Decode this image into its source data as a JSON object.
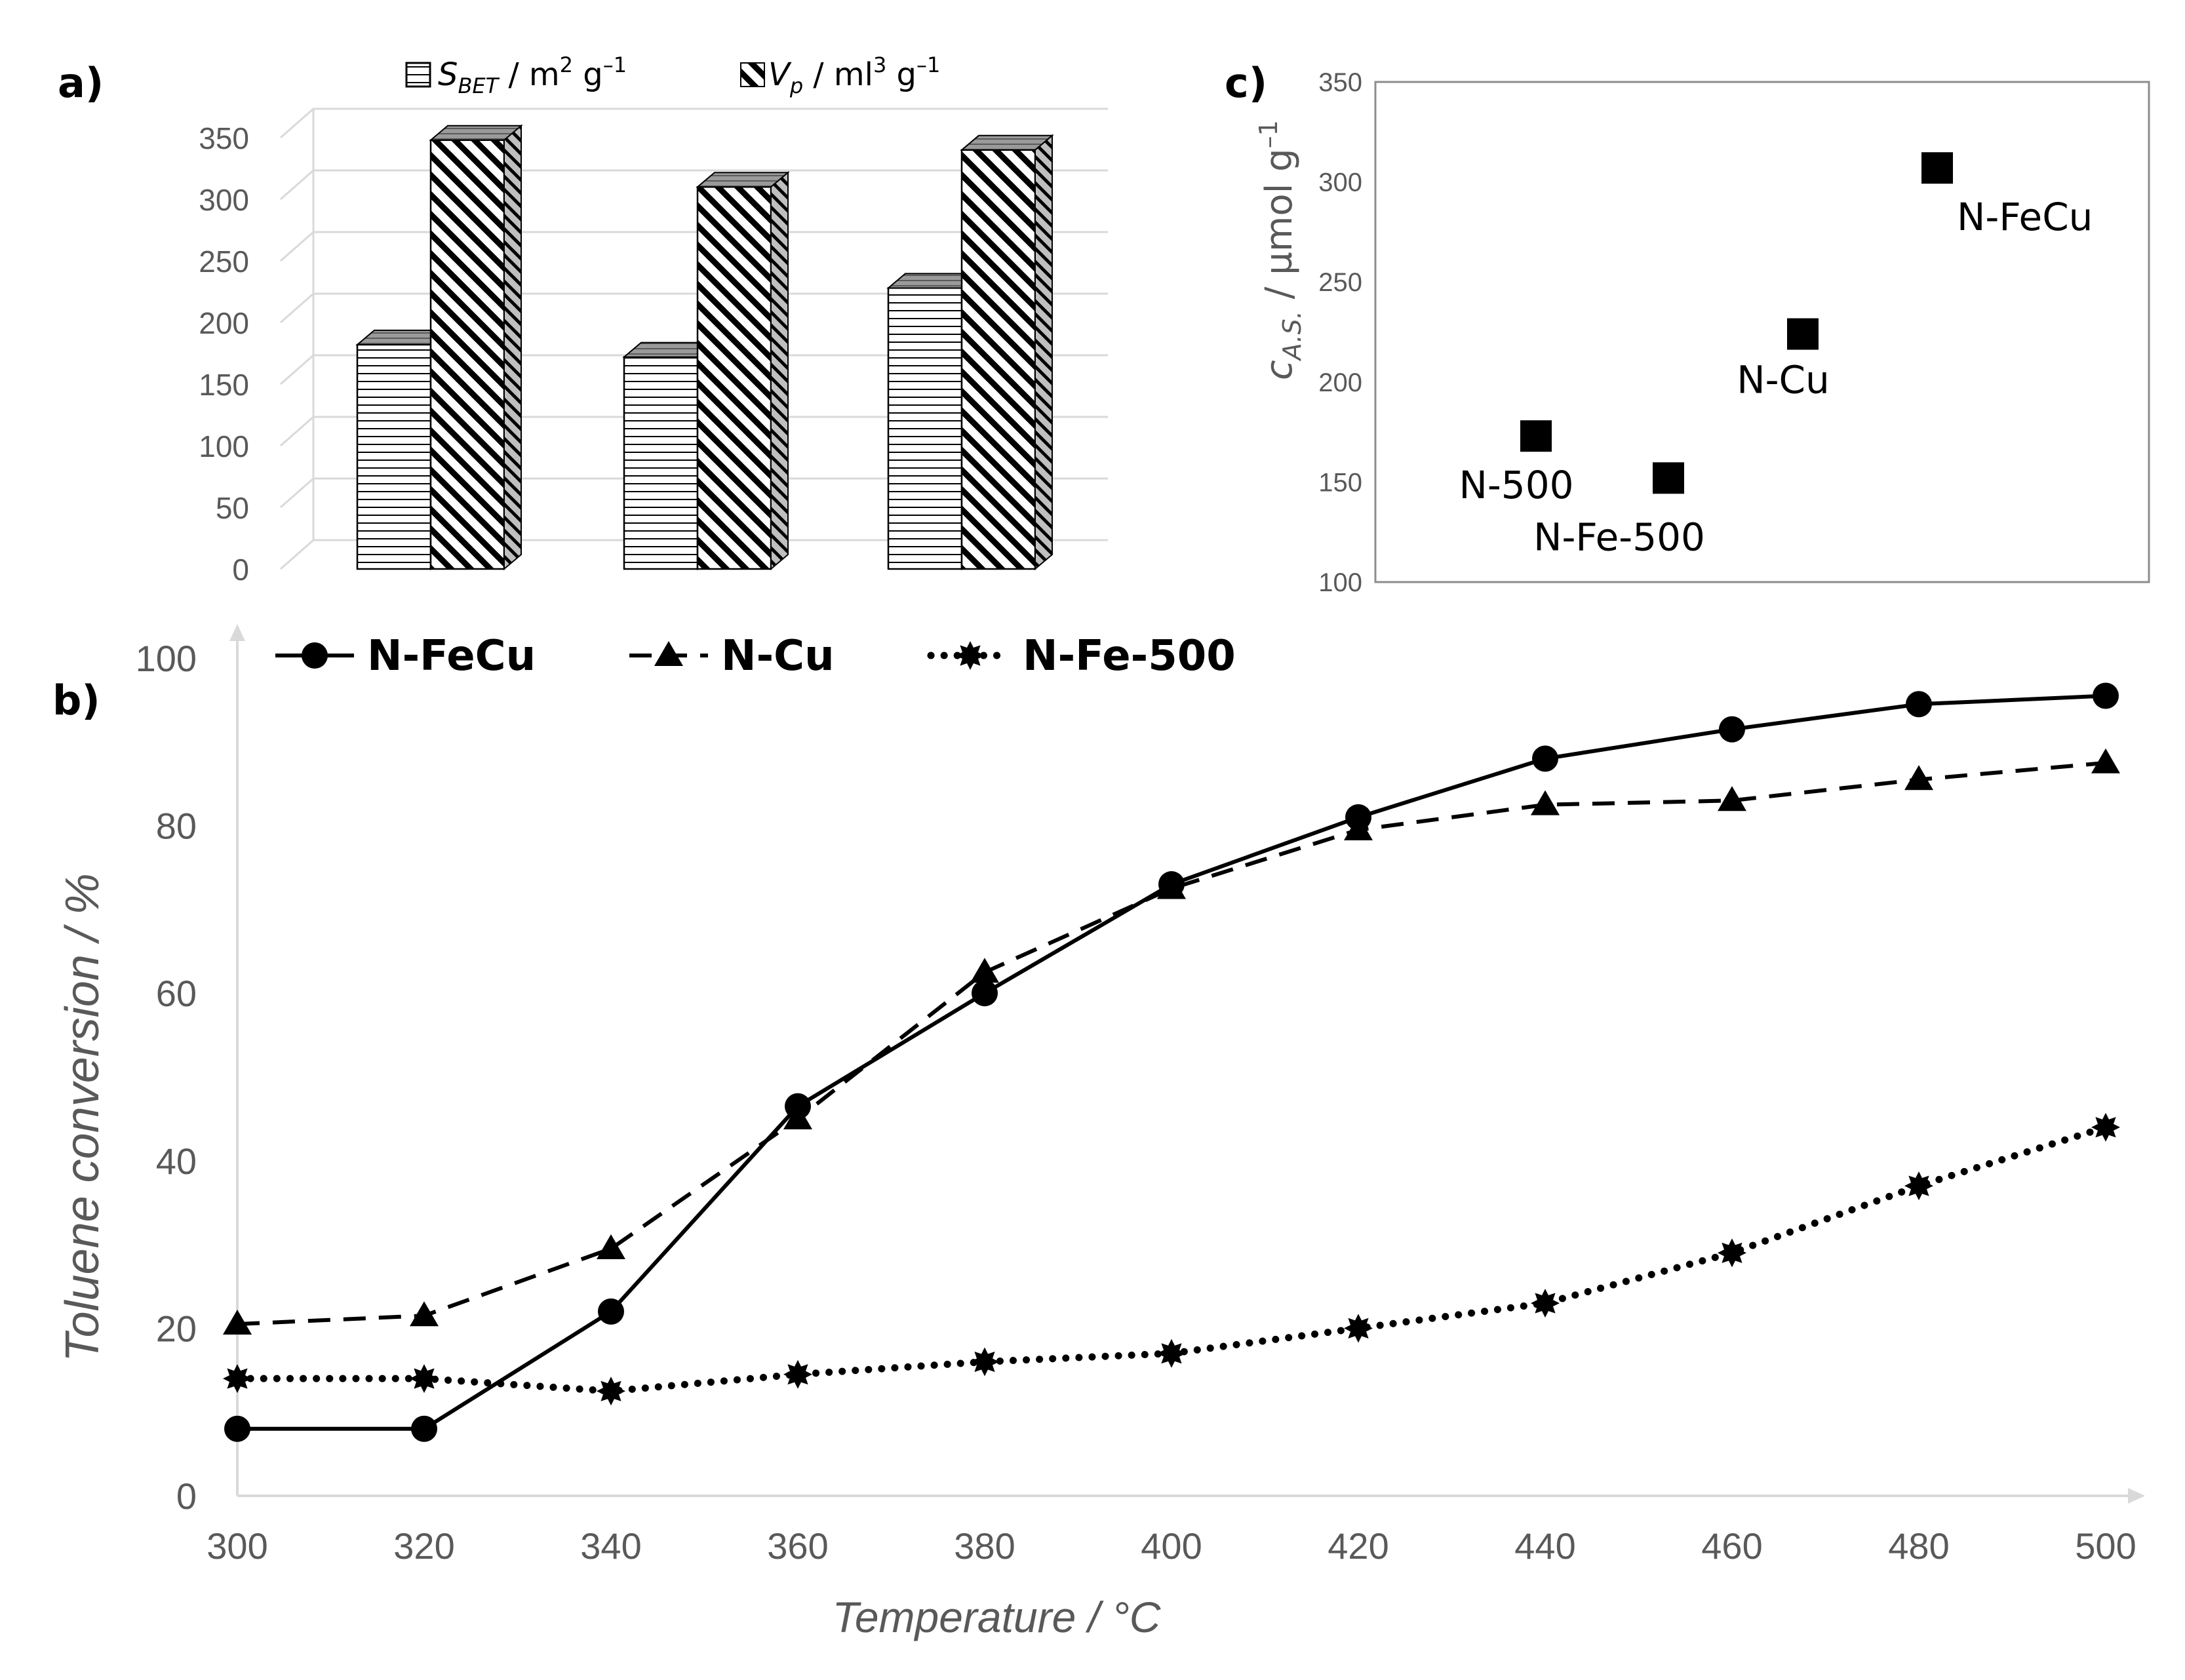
{
  "chart_data": [
    {
      "panel": "a)",
      "type": "bar",
      "categories": [
        "",
        "",
        ""
      ],
      "series": [
        {
          "name": "S_BET / m² g⁻¹",
          "values": [
            182,
            172,
            228
          ],
          "pattern": "horizontal-lines"
        },
        {
          "name": "V_p / ml³ g⁻¹",
          "values": [
            348,
            310,
            340
          ],
          "pattern": "diagonal-stripes"
        }
      ],
      "legend": {
        "sbet": {
          "main": "S",
          "sub": "BET",
          "unit": " / m",
          "sup": "2",
          "rest": " g",
          "exp": "–1"
        },
        "vp": {
          "main": "V",
          "sub": "p",
          "unit": " / ml",
          "sup": "3",
          "rest": " g",
          "exp": "–1"
        }
      },
      "ylim": [
        0,
        350
      ],
      "yticks": [
        "0",
        "50",
        "100",
        "150",
        "200",
        "250",
        "300",
        "350"
      ],
      "grid": true,
      "legend_position": "top"
    },
    {
      "panel": "b)",
      "type": "line",
      "x": [
        300,
        320,
        340,
        360,
        380,
        400,
        420,
        440,
        460,
        480,
        500
      ],
      "series": [
        {
          "name": "N-FeCu",
          "style": "solid",
          "marker": "circle",
          "values": [
            8,
            8,
            22,
            46.5,
            60,
            73,
            81,
            88,
            91.5,
            94.5,
            95.5
          ]
        },
        {
          "name": "N-Cu",
          "style": "dashed",
          "marker": "triangle",
          "values": [
            20.5,
            21.5,
            29.5,
            45,
            62.5,
            72.5,
            79.5,
            82.5,
            83,
            85.5,
            87.5
          ]
        },
        {
          "name": "N-Fe-500",
          "style": "dotted",
          "marker": "star",
          "values": [
            14,
            14,
            12.5,
            14.5,
            16,
            17,
            20,
            23,
            29,
            37,
            44
          ]
        }
      ],
      "xlabel": "Temperature / °C",
      "ylabel": "Toluene conversion / %",
      "xlim": [
        300,
        500
      ],
      "ylim": [
        0,
        100
      ],
      "xticks": [
        "300",
        "320",
        "340",
        "360",
        "380",
        "400",
        "420",
        "440",
        "460",
        "480",
        "500"
      ],
      "yticks": [
        "0",
        "20",
        "40",
        "60",
        "80",
        "100"
      ],
      "legend_position": "top-left"
    },
    {
      "panel": "c)",
      "type": "scatter",
      "points": [
        {
          "label": "N-500",
          "y": 173
        },
        {
          "label": "N-Fe-500",
          "y": 152
        },
        {
          "label": "N-Cu",
          "y": 224
        },
        {
          "label": "N-FeCu",
          "y": 307
        }
      ],
      "ylabel": {
        "main": "c",
        "sub": "A.S.",
        "rest": " / µmol g",
        "sup": "–1"
      },
      "ylim": [
        100,
        350
      ],
      "yticks": [
        "100",
        "150",
        "200",
        "250",
        "300",
        "350"
      ]
    }
  ]
}
